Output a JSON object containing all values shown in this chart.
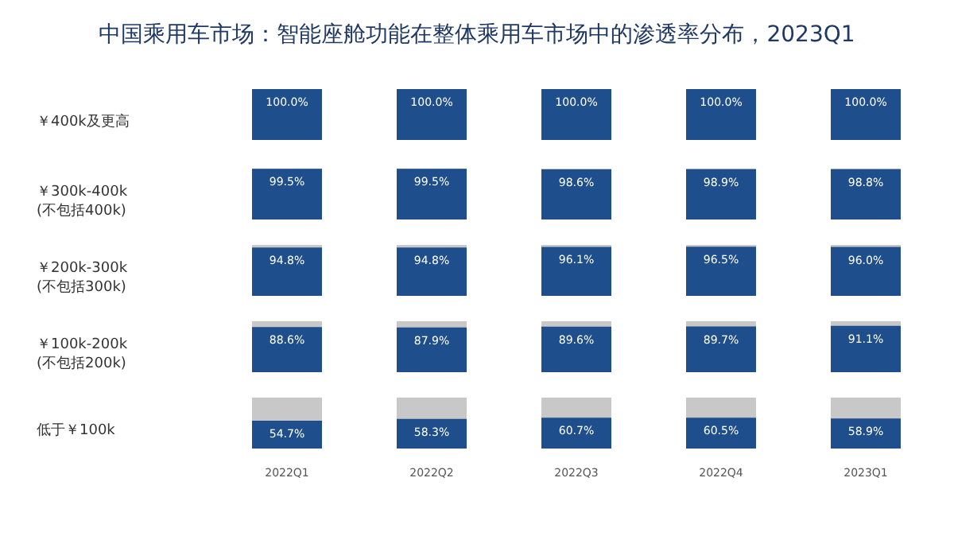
{
  "chart_data": [
    {
      "type": "bar",
      "title": "中国乘用车市场：智能座舱功能在整体乘用车市场中的渗透率分布，2023Q1",
      "ylabel": "￥400k及更高",
      "categories": [
        null,
        null,
        null,
        null,
        null
      ],
      "values": [
        100.0,
        100.0,
        100.0,
        100.0,
        100.0
      ],
      "value_labels": [
        "100.0%",
        "100.0%",
        "100.0%",
        "100.0%",
        "100.0%"
      ],
      "color": "#1f4e8c",
      "ylim": [
        0,
        100
      ],
      "tick_labels": false
    },
    {
      "type": "bar",
      "ylabel": "￥300k-400k\n(不包括400k)",
      "categories": [
        null,
        null,
        null,
        null,
        null
      ],
      "values": [
        99.5,
        99.5,
        98.6,
        98.9,
        98.8
      ],
      "value_labels": [
        "99.5%",
        "99.5%",
        "98.6%",
        "98.9%",
        "98.8%"
      ],
      "color": "#1f4e8c",
      "ylim": [
        0,
        100
      ],
      "tick_labels": false
    },
    {
      "type": "bar",
      "ylabel": "￥200k-300k\n(不包括300k)",
      "categories": [
        null,
        null,
        null,
        null,
        null
      ],
      "values": [
        94.8,
        94.8,
        96.1,
        96.5,
        96.0
      ],
      "value_labels": [
        "94.8%",
        "94.8%",
        "96.1%",
        "96.5%",
        "96.0%"
      ],
      "color": "#1f4e8c",
      "ylim": [
        0,
        100
      ],
      "tick_labels": false
    },
    {
      "type": "bar",
      "ylabel": "￥100k-200k\n(不包括200k)",
      "categories": [
        null,
        null,
        null,
        null,
        null
      ],
      "values": [
        88.6,
        87.9,
        89.6,
        89.7,
        91.1
      ],
      "value_labels": [
        "88.6%",
        "87.9%",
        "89.6%",
        "89.7%",
        "91.1%"
      ],
      "color": "#1f4e8c",
      "ylim": [
        0,
        100
      ],
      "tick_labels": false
    },
    {
      "type": "bar",
      "ylabel": "低于￥100k",
      "categories": [
        "2022Q1",
        "2022Q2",
        "2022Q3",
        "2022Q4",
        "2023Q1"
      ],
      "values": [
        54.7,
        58.3,
        60.7,
        60.5,
        58.9
      ],
      "value_labels": [
        "54.7%",
        "58.3%",
        "60.7%",
        "60.5%",
        "58.9%"
      ],
      "color": "#1f4e8c",
      "ylim": [
        0,
        100
      ],
      "tick_labels": "x"
    }
  ]
}
